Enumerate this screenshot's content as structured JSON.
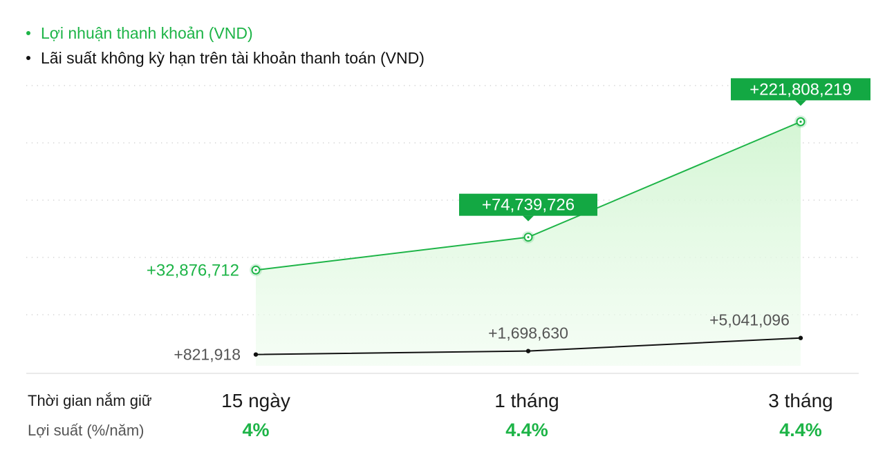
{
  "colors": {
    "green": "#1db447",
    "green_label_bg": "#13a843",
    "black": "#111111",
    "grey_text": "#555555",
    "grid": "#c9c9c9",
    "area_fill": "#d9f7d9"
  },
  "legend": [
    {
      "label": "Lợi nhuận thanh khoản (VND)",
      "color": "#1db447"
    },
    {
      "label": "Lãi suất không kỳ hạn trên tài khoản thanh toán (VND)",
      "color": "#111111"
    }
  ],
  "chart_data": {
    "type": "area",
    "categories": [
      "15 ngày",
      "1 tháng",
      "3 tháng"
    ],
    "series": [
      {
        "name": "Lợi nhuận thanh khoản (VND)",
        "values": [
          32876712,
          74739726,
          221808219
        ],
        "labels": [
          "+32,876,712",
          "+74,739,726",
          "+221,808,219"
        ],
        "color": "#1db447"
      },
      {
        "name": "Lãi suất không kỳ hạn trên tài khoản thanh toán (VND)",
        "values": [
          821918,
          1698630,
          5041096
        ],
        "labels": [
          "+821,918",
          "+1,698,630",
          "+5,041,096"
        ],
        "color": "#111111"
      }
    ],
    "grid": true,
    "legend_position": "top-left"
  },
  "table": {
    "holding_label": "Thời gian nắm giữ",
    "yield_label": "Lợi suất (%/năm)",
    "periods": [
      "15 ngày",
      "1 tháng",
      "3 tháng"
    ],
    "yields": [
      "4%",
      "4.4%",
      "4.4%"
    ]
  }
}
